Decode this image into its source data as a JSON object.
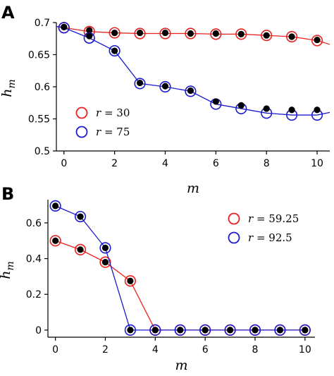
{
  "chart_data": [
    {
      "panel": "A",
      "type": "scatter",
      "xlabel": "m",
      "ylabel": "h_m",
      "xlim": [
        -0.3,
        10.5
      ],
      "ylim": [
        0.5,
        0.7
      ],
      "xticks": [
        0,
        2,
        4,
        6,
        8,
        10
      ],
      "yticks": [
        0.5,
        0.55,
        0.6,
        0.65,
        0.7
      ],
      "ytick_labels": [
        "0.5",
        "0.55",
        "0.6",
        "0.65",
        "0.7"
      ],
      "legend_position": "lower-left",
      "x": [
        0,
        1,
        2,
        3,
        4,
        5,
        6,
        7,
        8,
        9,
        10
      ],
      "series": [
        {
          "name": "r = 30",
          "legend_label": "r = 30",
          "color": "#e8211d",
          "marker": "open-circle",
          "line_x": [
            -0.3,
            0,
            1,
            2,
            3,
            4,
            5,
            6,
            7,
            8,
            9,
            10,
            10.5
          ],
          "line_y": [
            0.694,
            0.692,
            0.686,
            0.684,
            0.683,
            0.683,
            0.683,
            0.682,
            0.682,
            0.68,
            0.678,
            0.672,
            0.666
          ],
          "values": [
            0.692,
            0.686,
            0.684,
            0.683,
            0.683,
            0.683,
            0.682,
            0.682,
            0.68,
            0.678,
            0.672
          ],
          "simulated": [
            0.693,
            0.688,
            0.684,
            0.684,
            0.684,
            0.683,
            0.683,
            0.682,
            0.68,
            0.678,
            0.673
          ]
        },
        {
          "name": "r = 75",
          "legend_label": "r = 75",
          "color": "#1c1ccc",
          "marker": "open-circle",
          "line_x": [
            -0.3,
            0,
            1,
            2,
            3,
            4,
            5,
            6,
            7,
            8,
            9,
            10,
            10.5
          ],
          "line_y": [
            0.694,
            0.692,
            0.676,
            0.656,
            0.605,
            0.6,
            0.593,
            0.573,
            0.566,
            0.559,
            0.556,
            0.556,
            0.56
          ],
          "values": [
            0.692,
            0.676,
            0.656,
            0.605,
            0.6,
            0.593,
            0.573,
            0.566,
            0.559,
            0.556,
            0.556
          ],
          "simulated": [
            0.693,
            0.679,
            0.656,
            0.606,
            0.601,
            0.594,
            0.577,
            0.571,
            0.566,
            0.564,
            0.564
          ]
        }
      ]
    },
    {
      "panel": "B",
      "type": "scatter",
      "xlabel": "m",
      "ylabel": "h_m",
      "xlim": [
        -0.3,
        10.4
      ],
      "ylim": [
        -0.04,
        0.73
      ],
      "xticks": [
        0,
        2,
        4,
        6,
        8,
        10
      ],
      "yticks": [
        0,
        0.2,
        0.4,
        0.6
      ],
      "ytick_labels": [
        "0",
        "0.2",
        "0.4",
        "0.6"
      ],
      "legend_position": "top-right",
      "x": [
        0,
        1,
        2,
        3,
        4,
        5,
        6,
        7,
        8,
        9,
        10
      ],
      "series": [
        {
          "name": "r = 59.25",
          "legend_label": "r = 59.25",
          "color": "#e8211d",
          "marker": "open-circle",
          "line_x": [
            0,
            1,
            2,
            3,
            4,
            5,
            6,
            7,
            8,
            9,
            10
          ],
          "line_y": [
            0.5,
            0.45,
            0.38,
            0.275,
            0,
            0,
            0,
            0,
            0,
            0,
            0
          ],
          "values": [
            0.5,
            0.45,
            0.38,
            0.275,
            0,
            0,
            0,
            0,
            0,
            0,
            0
          ],
          "simulated": [
            0.5,
            0.45,
            0.38,
            0.275,
            0,
            0,
            0,
            0,
            0,
            0,
            0
          ]
        },
        {
          "name": "r = 92.5",
          "legend_label": "r = 92.5",
          "color": "#1c1ccc",
          "marker": "open-circle",
          "line_x": [
            0,
            1,
            2,
            3,
            4,
            5,
            6,
            7,
            8,
            9,
            10
          ],
          "line_y": [
            0.695,
            0.635,
            0.46,
            0,
            0,
            0,
            0,
            0,
            0,
            0,
            0
          ],
          "values": [
            0.695,
            0.635,
            0.46,
            0,
            0,
            0,
            0,
            0,
            0,
            0,
            0
          ],
          "simulated": [
            0.695,
            0.635,
            0.46,
            0,
            0,
            0,
            0,
            0,
            0,
            0,
            0
          ]
        }
      ]
    }
  ]
}
